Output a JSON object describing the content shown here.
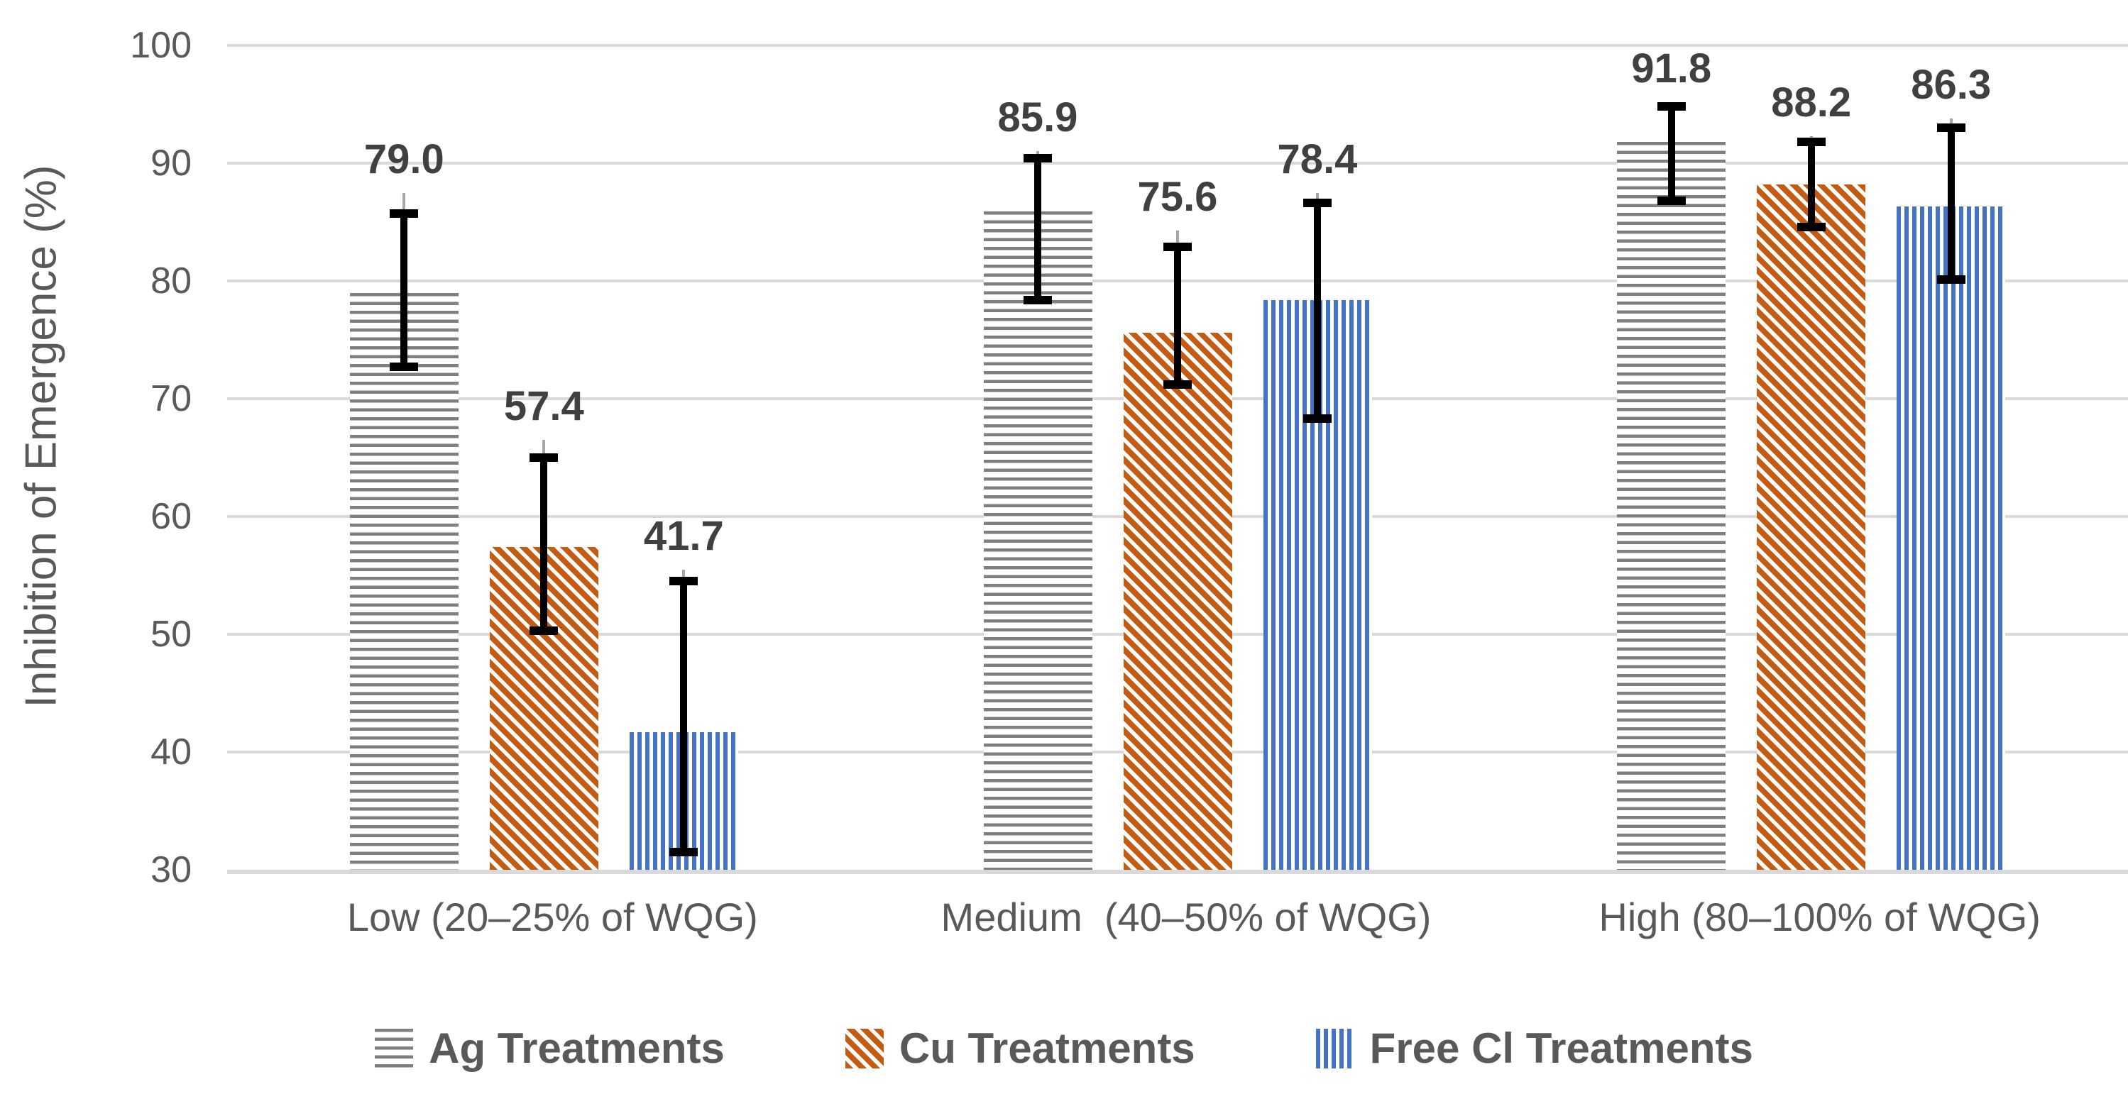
{
  "chart_data": {
    "type": "bar",
    "title": "",
    "xlabel": "",
    "ylabel": "Inhibition of Emergence (%)",
    "ylim": [
      30,
      100
    ],
    "ytick_step": 10,
    "yticks": [
      100,
      90,
      80,
      70,
      60,
      50,
      40,
      30
    ],
    "grid": true,
    "legend_position": "bottom",
    "gridline_color": "#D9D9D9",
    "text_color": "#595959",
    "value_label_color": "#404040",
    "error_bar_color": "#000000",
    "outer_error_bar_color": "#A6A6A6",
    "categories": [
      "Low (20–25% of WQG)",
      "Medium  (40–50% of WQG)",
      "High (80–100% of WQG)"
    ],
    "series": [
      {
        "name": "Ag Treatments",
        "pattern": "horizontal",
        "color": "#7F7F7F",
        "values": [
          79.0,
          85.9,
          91.8
        ],
        "value_labels": [
          "79.0",
          "85.9",
          "91.8"
        ],
        "error_low": [
          72.7,
          78.4,
          86.8
        ],
        "error_high": [
          85.7,
          90.4,
          94.8
        ],
        "outer_error_high": [
          87.5,
          91.0,
          95.2
        ]
      },
      {
        "name": "Cu Treatments",
        "pattern": "diagonal",
        "color": "#C55A11",
        "values": [
          57.4,
          75.6,
          88.2
        ],
        "value_labels": [
          "57.4",
          "75.6",
          "88.2"
        ],
        "error_low": [
          50.3,
          71.2,
          84.6
        ],
        "error_high": [
          65.0,
          82.9,
          91.8
        ],
        "outer_error_high": [
          66.5,
          84.3,
          92.3
        ]
      },
      {
        "name": "Free Cl Treatments",
        "pattern": "vertical",
        "color": "#4472C4",
        "values": [
          41.7,
          78.4,
          86.3
        ],
        "value_labels": [
          "41.7",
          "78.4",
          "86.3"
        ],
        "error_low": [
          31.5,
          68.3,
          80.1
        ],
        "error_high": [
          54.5,
          86.6,
          93.0
        ],
        "outer_error_high": [
          55.5,
          87.5,
          93.8
        ]
      }
    ]
  }
}
